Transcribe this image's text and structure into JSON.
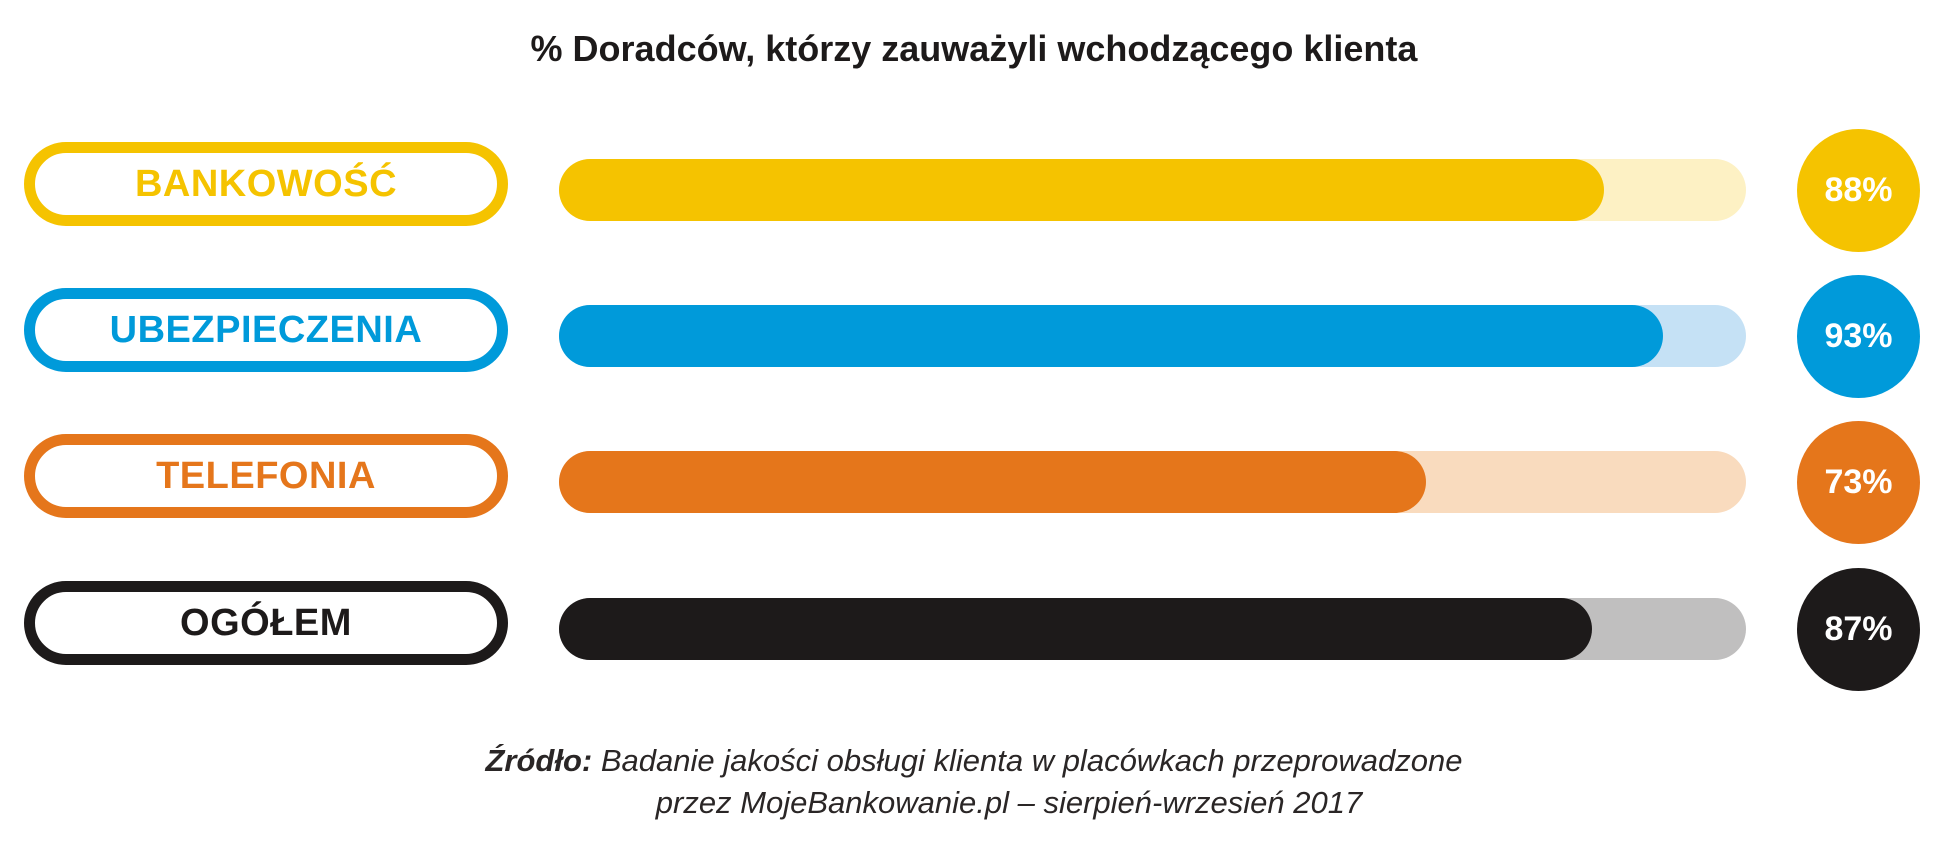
{
  "title": "% Doradców, którzy zauważyli wchodzącego klienta",
  "rows": [
    {
      "label": "BANKOWOŚĆ",
      "value_text": "88%",
      "color": "#f5c300",
      "track_color": "#fdf1c4"
    },
    {
      "label": "UBEZPIECZENIA",
      "value_text": "93%",
      "color": "#009ada",
      "track_color": "#c5e1f5"
    },
    {
      "label": "TELEFONIA",
      "value_text": "73%",
      "color": "#e5761b",
      "track_color": "#f9dbbe"
    },
    {
      "label": "OGÓŁEM",
      "value_text": "87%",
      "color": "#1d1a1a",
      "track_color": "#c0bfbf"
    }
  ],
  "chart_data": {
    "type": "bar",
    "orientation": "horizontal",
    "title": "% Doradców, którzy zauważyli wchodzącego klienta",
    "categories": [
      "BANKOWOŚĆ",
      "UBEZPIECZENIA",
      "TELEFONIA",
      "OGÓŁEM"
    ],
    "values": [
      88,
      93,
      73,
      87
    ],
    "xlim": [
      0,
      100
    ],
    "grid": false
  },
  "source": {
    "head": "Źródło:",
    "line1": "Badanie jakości obsługi klienta w placówkach przeprowadzone",
    "line2": "przez MojeBankowanie.pl – sierpień-wrzesień 2017"
  }
}
